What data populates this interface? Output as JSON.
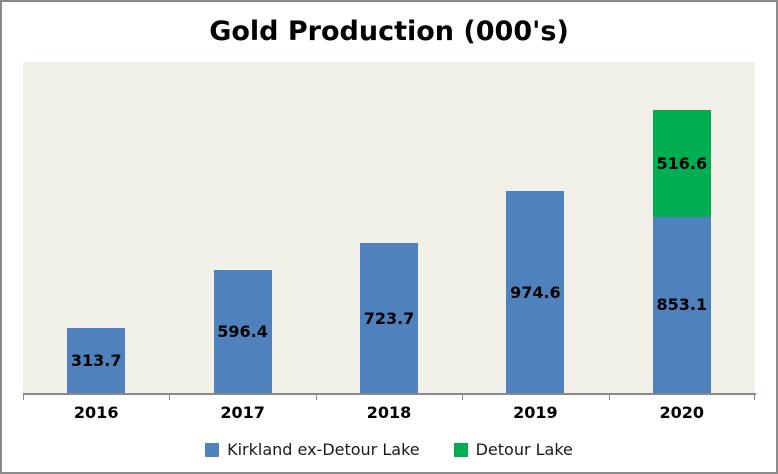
{
  "title": "Gold Production (000's)",
  "colors": {
    "kirkland": "#4f81bd",
    "detour": "#00ad50",
    "plot_bg": "#f1f0e8",
    "axis": "#898989"
  },
  "chart_data": {
    "type": "bar",
    "stacked": true,
    "title": "Gold Production (000's)",
    "categories": [
      "2016",
      "2017",
      "2018",
      "2019",
      "2020"
    ],
    "series": [
      {
        "name": "Kirkland ex-Detour Lake",
        "color_key": "kirkland",
        "values": [
          313.7,
          596.4,
          723.7,
          974.6,
          853.1
        ]
      },
      {
        "name": "Detour Lake",
        "color_key": "detour",
        "values": [
          null,
          null,
          null,
          null,
          516.6
        ]
      }
    ],
    "xlabel": "",
    "ylabel": "",
    "ylim": [
      0,
      1600
    ],
    "grid": false,
    "y_axis_visible": false,
    "data_labels": "center",
    "label_format": "1-decimal",
    "legend_position": "bottom"
  },
  "legend": {
    "items": [
      {
        "label": "Kirkland ex-Detour Lake",
        "color_key": "kirkland"
      },
      {
        "label": "Detour Lake",
        "color_key": "detour"
      }
    ]
  }
}
